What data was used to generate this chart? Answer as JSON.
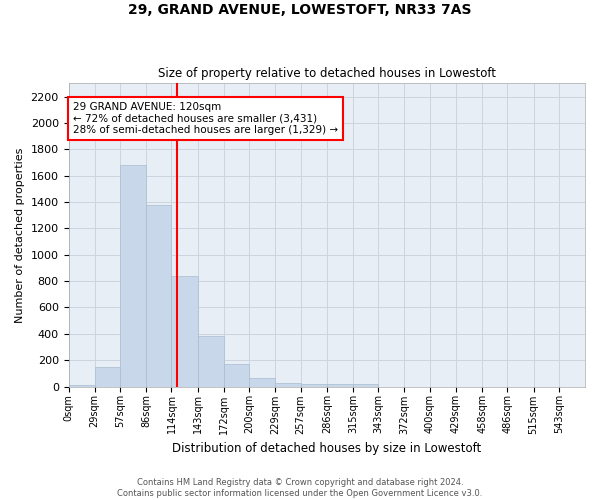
{
  "title": "29, GRAND AVENUE, LOWESTOFT, NR33 7AS",
  "subtitle": "Size of property relative to detached houses in Lowestoft",
  "xlabel": "Distribution of detached houses by size in Lowestoft",
  "ylabel": "Number of detached properties",
  "bar_color": "#c8d8ea",
  "bar_edge_color": "#a8bece",
  "grid_color": "#ccd4e0",
  "background_color": "#e8eef6",
  "annotation_line1": "29 GRAND AVENUE: 120sqm",
  "annotation_line2": "← 72% of detached houses are smaller (3,431)",
  "annotation_line3": "28% of semi-detached houses are larger (1,329) →",
  "vline_x": 120,
  "vline_color": "red",
  "footer_line1": "Contains HM Land Registry data © Crown copyright and database right 2024.",
  "footer_line2": "Contains public sector information licensed under the Open Government Licence v3.0.",
  "bin_edges": [
    0,
    29,
    57,
    86,
    114,
    143,
    172,
    200,
    229,
    257,
    286,
    315,
    343,
    372,
    400,
    429,
    458,
    486,
    515,
    543,
    572
  ],
  "bar_heights": [
    10,
    150,
    1680,
    1380,
    840,
    380,
    170,
    65,
    30,
    20,
    20,
    20,
    0,
    0,
    0,
    0,
    0,
    0,
    0,
    0
  ],
  "ylim": [
    0,
    2300
  ],
  "yticks": [
    0,
    200,
    400,
    600,
    800,
    1000,
    1200,
    1400,
    1600,
    1800,
    2000,
    2200
  ]
}
